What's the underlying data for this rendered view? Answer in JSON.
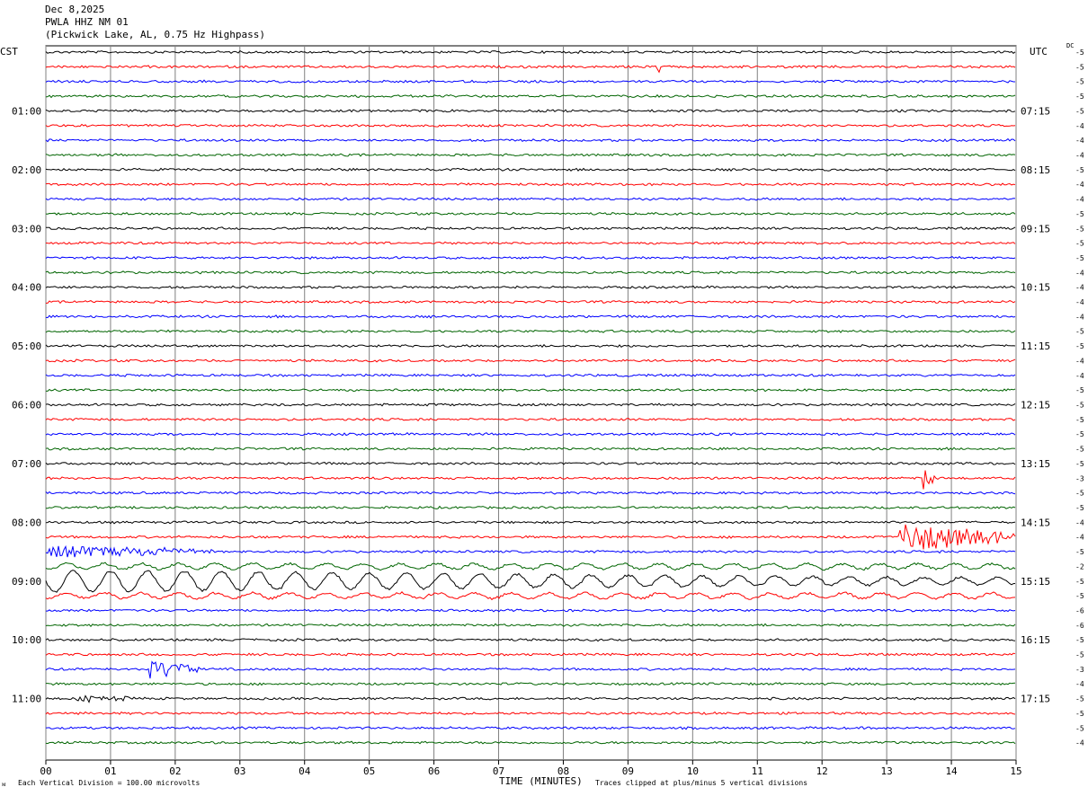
{
  "header": {
    "date": "Dec 8,2025",
    "station": "PWLA HHZ NM 01",
    "location": "(Pickwick Lake, AL, 0.75 Hz Highpass)"
  },
  "labels": {
    "left_tz": "CST",
    "right_tz": "UTC",
    "dc_label": "DC",
    "xlabel": "TIME (MINUTES)",
    "scale_note": "Each Vertical Division =  100.00 microvolts",
    "clip_note": "Traces clipped at plus/minus 5 vertical divisions",
    "corner_mark": "ᴍ"
  },
  "chart_data": {
    "type": "line",
    "title": "PWLA HHZ NM 01",
    "x_ticks": [
      "00",
      "01",
      "02",
      "03",
      "04",
      "05",
      "06",
      "07",
      "08",
      "09",
      "10",
      "11",
      "12",
      "13",
      "14",
      "15"
    ],
    "xlim": [
      0,
      15
    ],
    "grid": true,
    "trace_colors": [
      "#000000",
      "#ff0000",
      "#0000ff",
      "#006400"
    ],
    "cst_labels": [
      "01:00",
      "02:00",
      "03:00",
      "04:00",
      "05:00",
      "06:00",
      "07:00",
      "08:00",
      "09:00",
      "10:00",
      "11:00"
    ],
    "utc_labels": [
      "07:15",
      "08:15",
      "09:15",
      "10:15",
      "11:15",
      "12:15",
      "13:15",
      "14:15",
      "15:15",
      "16:15",
      "17:15"
    ],
    "dc_offsets": [
      "-5",
      "-5",
      "-5",
      "-5",
      "-5",
      "-4",
      "-4",
      "-4",
      "-5",
      "-4",
      "-4",
      "-5",
      "-5",
      "-5",
      "-5",
      "-4",
      "-4",
      "-4",
      "-4",
      "-5",
      "-5",
      "-4",
      "-4",
      "-5",
      "-5",
      "-5",
      "-5",
      "-5",
      "-5",
      "-3",
      "-5",
      "-5",
      "-4",
      "-4",
      "-5",
      "-2",
      "-5",
      "-5",
      "-6",
      "-6",
      "-5",
      "-5",
      "-3",
      "-4",
      "-5",
      "-5",
      "-5",
      "-4"
    ],
    "trace_count": 48,
    "events": [
      {
        "trace": 1,
        "minute": 9.4,
        "amp": 6,
        "dur": 0.1
      },
      {
        "trace": 29,
        "minute": 13.55,
        "amp": 5,
        "dur": 0.2
      },
      {
        "trace": 33,
        "minute": 13.2,
        "amp": 6,
        "dur": 1.8
      },
      {
        "trace": 34,
        "minute": 0.0,
        "amp": 2.5,
        "dur": 2.6
      },
      {
        "trace": 42,
        "minute": 1.6,
        "amp": 3.5,
        "dur": 0.8
      },
      {
        "trace": 44,
        "minute": 0.5,
        "amp": 1.2,
        "dur": 1.0
      }
    ]
  }
}
